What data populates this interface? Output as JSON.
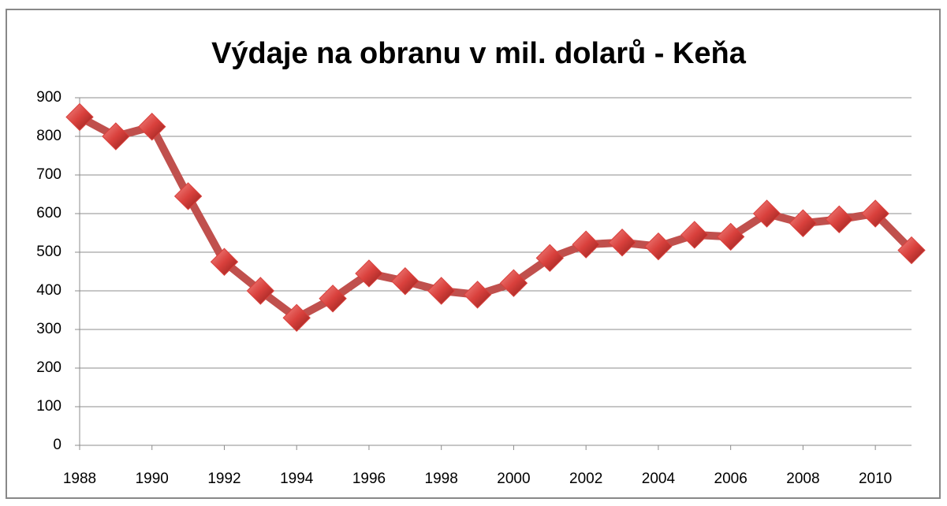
{
  "chart_data": {
    "type": "line",
    "title": "Výdaje na obranu v mil. dolarů - Keňa",
    "x": [
      1988,
      1989,
      1990,
      1991,
      1992,
      1993,
      1994,
      1995,
      1996,
      1997,
      1998,
      1999,
      2000,
      2001,
      2002,
      2003,
      2004,
      2005,
      2006,
      2007,
      2008,
      2009,
      2010,
      2011
    ],
    "values": [
      850,
      800,
      825,
      645,
      475,
      400,
      330,
      380,
      445,
      425,
      400,
      390,
      420,
      485,
      520,
      525,
      515,
      545,
      540,
      600,
      575,
      585,
      600,
      505
    ],
    "color": "#c0504d",
    "marker_color": "#d9403c",
    "xlim": [
      1988,
      2011
    ],
    "xticks": [
      1988,
      1990,
      1992,
      1994,
      1996,
      1998,
      2000,
      2002,
      2004,
      2006,
      2008,
      2010
    ],
    "ylim": [
      0,
      900
    ],
    "yticks": [
      0,
      100,
      200,
      300,
      400,
      500,
      600,
      700,
      800,
      900
    ],
    "grid": true
  }
}
